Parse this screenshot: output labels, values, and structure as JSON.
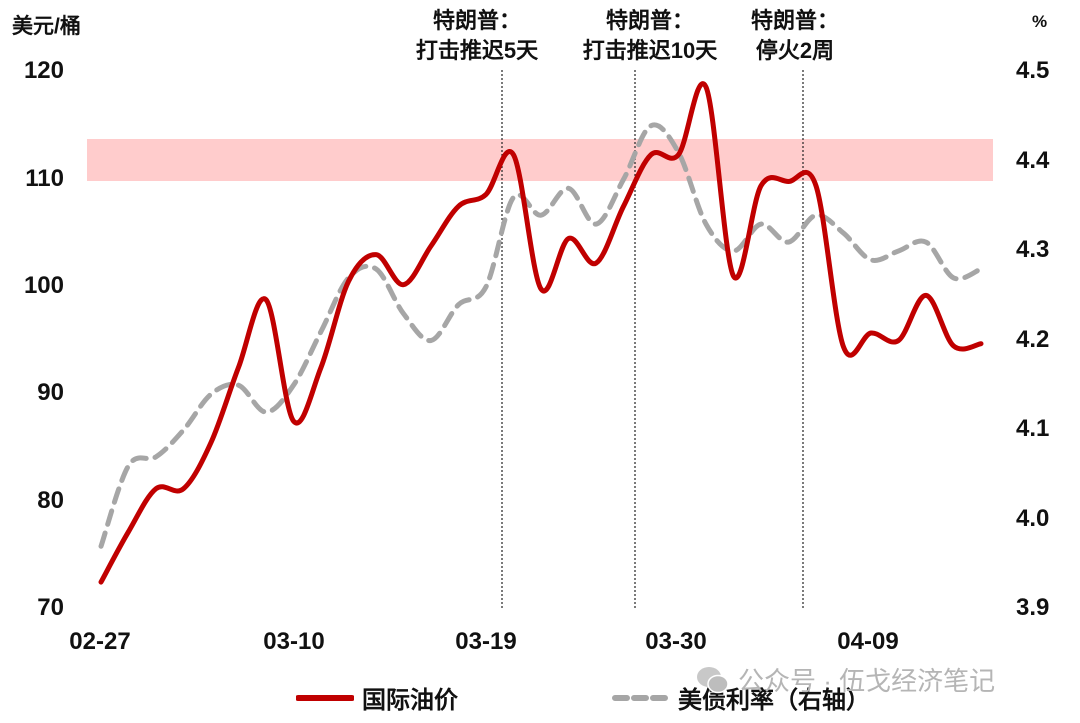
{
  "chart_data": {
    "type": "line",
    "title": "",
    "y_left_label": "美元/桶",
    "y_right_label": "%",
    "y_left_ticks": [
      "120",
      "110",
      "100",
      "90",
      "80",
      "70"
    ],
    "y_right_ticks": [
      "4.5",
      "4.4",
      "4.3",
      "4.2",
      "4.1",
      "4.0",
      "3.9"
    ],
    "ylim_left": [
      70,
      120
    ],
    "ylim_right": [
      3.9,
      4.5
    ],
    "x_tick_labels": [
      "02-27",
      "03-10",
      "03-19",
      "03-30",
      "04-09"
    ],
    "grid": false,
    "legend_position": "bottom",
    "highlight_band": {
      "y_from": 110,
      "y_to": 113.7,
      "axis": "left",
      "color": "#ffcccc"
    },
    "annotations": [
      {
        "line1": "特朗普：",
        "line2": "打击推迟5天",
        "x_label_near": "03-19"
      },
      {
        "line1": "特朗普：",
        "line2": "打击推迟10天",
        "x_label_near": "03-30"
      },
      {
        "line1": "特朗普：",
        "line2": "停火2周",
        "x_label_near": "04-09"
      }
    ],
    "series": [
      {
        "name": "国际油价",
        "axis": "left",
        "style": "solid",
        "color": "#c00000",
        "values": [
          72.5,
          77.2,
          81.2,
          81.2,
          85.5,
          92.5,
          98.8,
          87.5,
          92.5,
          100.5,
          103.0,
          100.2,
          103.8,
          107.5,
          108.6,
          112.3,
          99.8,
          104.5,
          102.2,
          107.5,
          112.3,
          112.3,
          118.6,
          101.0,
          109.4,
          109.8,
          109.4,
          94.4,
          95.7,
          95.0,
          99.2,
          94.5,
          94.7
        ]
      },
      {
        "name": "美债利率（右轴）",
        "axis": "right",
        "style": "dashed",
        "color": "#a6a6a6",
        "values": [
          3.97,
          4.06,
          4.07,
          4.1,
          4.14,
          4.15,
          4.12,
          4.15,
          4.21,
          4.27,
          4.28,
          4.23,
          4.2,
          4.24,
          4.26,
          4.36,
          4.34,
          4.37,
          4.33,
          4.38,
          4.44,
          4.41,
          4.33,
          4.3,
          4.33,
          4.31,
          4.34,
          4.32,
          4.29,
          4.3,
          4.31,
          4.27,
          4.28
        ]
      }
    ]
  },
  "axis": {
    "left_unit": "美元/桶",
    "right_unit": "%",
    "left_ticks": [
      "120",
      "110",
      "100",
      "90",
      "80",
      "70"
    ],
    "right_ticks": [
      "4.5",
      "4.4",
      "4.3",
      "4.2",
      "4.1",
      "4.0",
      "3.9"
    ],
    "x_labels": [
      "02-27",
      "03-10",
      "03-19",
      "03-30",
      "04-09"
    ]
  },
  "annotations": [
    {
      "line1": "特朗普：",
      "line2": "打击推迟5天"
    },
    {
      "line1": "特朗普：",
      "line2": "打击推迟10天"
    },
    {
      "line1": "特朗普：",
      "line2": "停火2周"
    }
  ],
  "legend": {
    "oil": "国际油价",
    "yield": "美债利率（右轴）"
  },
  "watermark": {
    "text": "公众号 · 伍戈经济笔记",
    "icon": "wechat-icon"
  },
  "colors": {
    "oil": "#c00000",
    "yield": "#a6a6a6",
    "band": "#ffcccc"
  }
}
